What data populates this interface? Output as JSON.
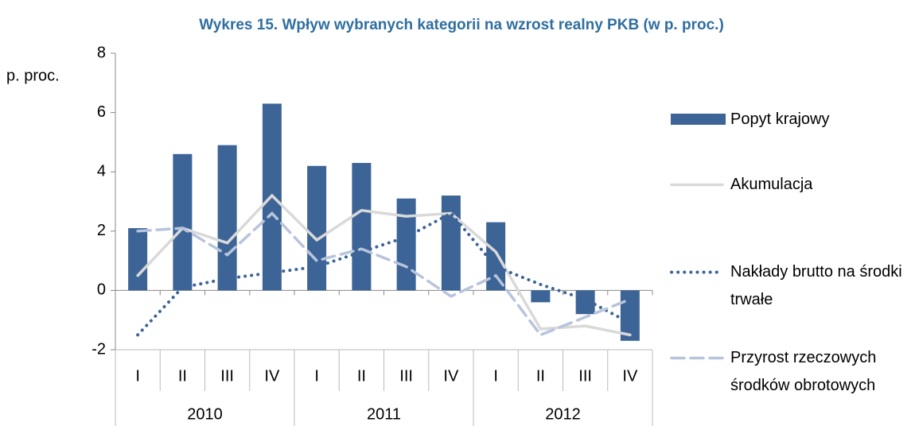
{
  "chart_data": {
    "type": "bar",
    "title": "Wykres 15. Wpływ wybranych kategorii na wzrost realny PKB (w p. proc.)",
    "y_label": "p. proc.",
    "categories": [
      "I",
      "II",
      "III",
      "IV",
      "I",
      "II",
      "III",
      "IV",
      "I",
      "II",
      "III",
      "IV"
    ],
    "category_groups": [
      "2010",
      "2011",
      "2012"
    ],
    "ylim": [
      -2,
      8
    ],
    "yticks": [
      -2,
      0,
      2,
      4,
      6,
      8
    ],
    "series": [
      {
        "name": "Popyt krajowy",
        "type": "bar",
        "color": "#3c6496",
        "values": [
          2.1,
          4.6,
          4.9,
          6.3,
          4.2,
          4.3,
          3.1,
          3.2,
          2.3,
          -0.4,
          -0.8,
          -1.7
        ]
      },
      {
        "name": "Akumulacja",
        "type": "line",
        "style": "solid",
        "color": "#d9d9d9",
        "values": [
          0.5,
          2.1,
          1.6,
          3.2,
          1.7,
          2.7,
          2.5,
          2.6,
          1.3,
          -1.3,
          -1.2,
          -1.5
        ]
      },
      {
        "name": "Nakłady brutto na środki trwałe",
        "type": "line",
        "style": "dotted",
        "color": "#3c6496",
        "values": [
          -1.5,
          0.1,
          0.4,
          0.6,
          0.8,
          1.3,
          1.8,
          2.6,
          0.8,
          0.2,
          -0.3,
          -1.1
        ]
      },
      {
        "name": "Przyrost rzeczowych środków obrotowych",
        "type": "line",
        "style": "dashed",
        "color": "#b8c4dc",
        "values": [
          2.0,
          2.1,
          1.2,
          2.6,
          1.0,
          1.4,
          0.8,
          -0.2,
          0.5,
          -1.5,
          -0.9,
          -0.3
        ]
      }
    ]
  }
}
